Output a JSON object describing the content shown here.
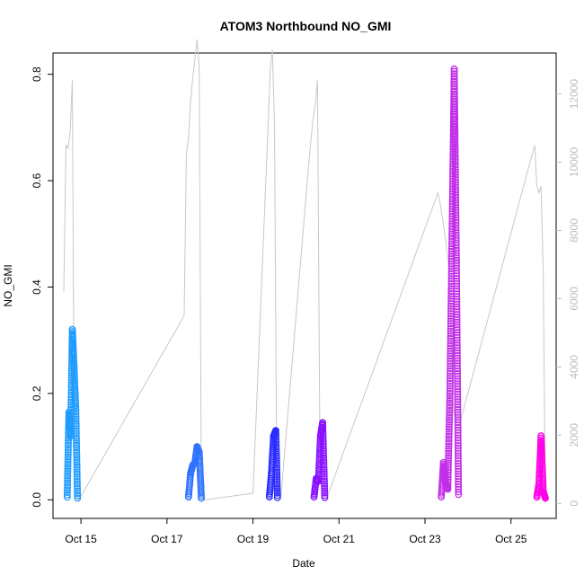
{
  "chart_data": {
    "type": "scatter",
    "title": "ATOM3 Northbound NO_GMI",
    "xlabel": "Date",
    "ylabel": "NO_GMI",
    "x_ticks": [
      "Oct 15",
      "Oct 17",
      "Oct 19",
      "Oct 21",
      "Oct 23",
      "Oct 25"
    ],
    "x_tick_values": [
      15,
      17,
      19,
      21,
      23,
      25
    ],
    "xlim": [
      14.35,
      26.05
    ],
    "y_ticks": [
      "0.0",
      "0.2",
      "0.4",
      "0.6",
      "0.8"
    ],
    "y_tick_values": [
      0,
      0.2,
      0.4,
      0.6,
      0.8
    ],
    "ylim": [
      -0.035,
      0.84
    ],
    "y2_ticks": [
      "0",
      "2000",
      "4000",
      "6000",
      "8000",
      "10000",
      "12000"
    ],
    "y2_tick_values": [
      0,
      2000,
      4000,
      6000,
      8000,
      10000,
      12000
    ],
    "y2lim": [
      -440,
      13200
    ],
    "axis2_color": "#bdbdbd",
    "grid": false,
    "series": [
      {
        "color": "#1e9bff",
        "x": [
          14.68,
          14.72,
          14.76,
          14.8,
          14.84,
          14.88,
          14.92
        ],
        "y": [
          0.005,
          0.165,
          0.12,
          0.32,
          0.25,
          0.17,
          0.003
        ]
      },
      {
        "color": "#2f73ff",
        "x": [
          17.5,
          17.55,
          17.6,
          17.65,
          17.7,
          17.75,
          17.8
        ],
        "y": [
          0.005,
          0.05,
          0.065,
          0.07,
          0.1,
          0.09,
          0.003
        ]
      },
      {
        "color": "#2a2cff",
        "x": [
          19.38,
          19.43,
          19.48,
          19.53,
          19.57
        ],
        "y": [
          0.005,
          0.05,
          0.12,
          0.13,
          0.004
        ]
      },
      {
        "color": "#8a12ff",
        "x": [
          20.42,
          20.47,
          20.52,
          20.57,
          20.62,
          20.67
        ],
        "y": [
          0.005,
          0.04,
          0.035,
          0.12,
          0.145,
          0.004
        ]
      },
      {
        "color": "#c12ee8",
        "x": [
          23.38,
          23.43,
          23.48,
          23.53,
          23.58,
          23.63,
          23.68,
          23.73,
          23.78
        ],
        "y": [
          0.005,
          0.07,
          0.03,
          0.02,
          0.2,
          0.5,
          0.81,
          0.45,
          0.01
        ]
      },
      {
        "color": "#ff00e8",
        "x": [
          25.6,
          25.65,
          25.7,
          25.75,
          25.8
        ],
        "y": [
          0.005,
          0.03,
          0.12,
          0.015,
          0.003
        ]
      }
    ],
    "secondary_series": {
      "color": "#c8c8c8",
      "x": [
        14.6,
        14.65,
        14.7,
        14.75,
        14.8,
        14.85,
        14.9,
        14.95,
        17.4,
        17.45,
        17.5,
        17.55,
        17.6,
        17.65,
        17.7,
        17.75,
        17.8,
        17.85,
        19.0,
        19.35,
        19.4,
        19.45,
        19.5,
        19.55,
        19.6,
        19.65,
        20.3,
        20.35,
        20.4,
        20.45,
        20.5,
        20.55,
        20.6,
        20.65,
        20.7,
        23.3,
        23.35,
        23.4,
        23.45,
        23.5,
        23.55,
        23.6,
        23.65,
        23.7,
        23.75,
        23.8,
        25.55,
        25.6,
        25.65,
        25.7,
        25.75,
        25.8
      ],
      "y": [
        6200,
        10500,
        10400,
        10900,
        12400,
        400,
        200,
        100,
        5500,
        10200,
        10700,
        11800,
        12500,
        13000,
        13600,
        12800,
        500,
        100,
        300,
        11000,
        12700,
        13300,
        11200,
        1200,
        300,
        200,
        10000,
        10700,
        11300,
        11700,
        12400,
        2500,
        200,
        100,
        100,
        9100,
        8800,
        8400,
        8000,
        7500,
        7000,
        5500,
        3000,
        2300,
        2300,
        2300,
        10500,
        9300,
        9100,
        9300,
        6800,
        0
      ]
    }
  }
}
